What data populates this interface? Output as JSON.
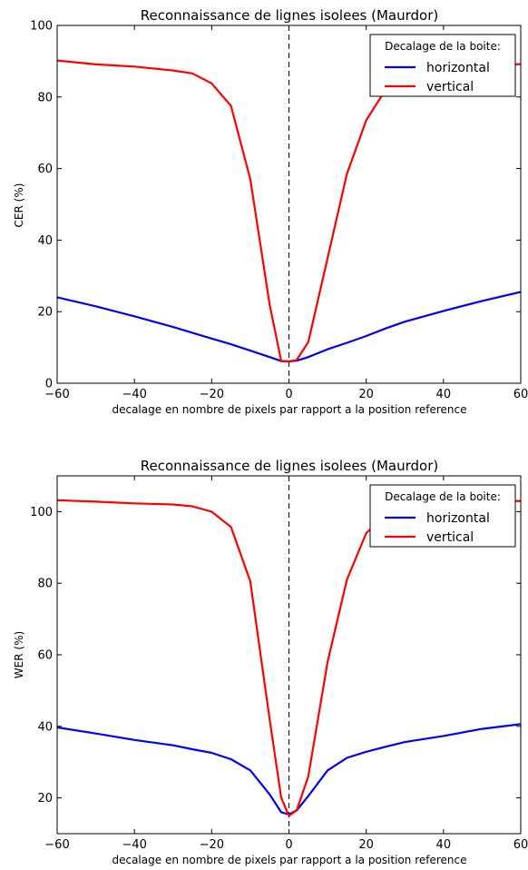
{
  "chart_data": [
    {
      "type": "line",
      "title": "Reconnaissance de lignes isolees (Maurdor)",
      "xlabel": "decalage en nombre de pixels par rapport a la position reference",
      "ylabel": "CER (%)",
      "xlim": [
        -60,
        60
      ],
      "ylim": [
        0,
        100
      ],
      "xticks": [
        -60,
        -40,
        -20,
        0,
        20,
        40,
        60
      ],
      "yticks": [
        0,
        20,
        40,
        60,
        80,
        100
      ],
      "grid": false,
      "reference_line_x": 0,
      "legend": {
        "title": "Decalage de la boite:",
        "position": "top-right"
      },
      "series": [
        {
          "name": "horizontal",
          "color": "#0000ff",
          "x": [
            -60,
            -50,
            -40,
            -30,
            -25,
            -20,
            -15,
            -10,
            -5,
            -2,
            0,
            2,
            5,
            10,
            15,
            20,
            25,
            30,
            40,
            50,
            60
          ],
          "y": [
            24,
            21.5,
            18.7,
            15.7,
            14.1,
            12.5,
            10.9,
            9.1,
            7.3,
            6.2,
            6.1,
            6.3,
            7.3,
            9.5,
            11.3,
            13.2,
            15.3,
            17.2,
            20.2,
            23.0,
            25.5
          ]
        },
        {
          "name": "vertical",
          "color": "#ff0000",
          "x": [
            -60,
            -50,
            -40,
            -30,
            -25,
            -20,
            -15,
            -10,
            -5,
            -2,
            0,
            2,
            5,
            10,
            15,
            20,
            25,
            30,
            40,
            50,
            60
          ],
          "y": [
            90.2,
            89.1,
            88.5,
            87.4,
            86.6,
            83.8,
            77.5,
            57.0,
            22.0,
            6.2,
            6.1,
            6.5,
            11.5,
            35.0,
            58.5,
            73.5,
            82.0,
            86.0,
            88.0,
            88.8,
            89.2
          ]
        }
      ]
    },
    {
      "type": "line",
      "title": "Reconnaissance de lignes isolees (Maurdor)",
      "xlabel": "decalage en nombre de pixels par rapport a la position reference",
      "ylabel": "WER (%)",
      "xlim": [
        -60,
        60
      ],
      "ylim": [
        10,
        110
      ],
      "xticks": [
        -60,
        -40,
        -20,
        0,
        20,
        40,
        60
      ],
      "yticks": [
        20,
        40,
        60,
        80,
        100
      ],
      "grid": false,
      "reference_line_x": 0,
      "legend": {
        "title": "Decalage de la boite:",
        "position": "top-right"
      },
      "series": [
        {
          "name": "horizontal",
          "color": "#0000ff",
          "x": [
            -60,
            -50,
            -40,
            -30,
            -25,
            -20,
            -15,
            -10,
            -5,
            -2,
            0,
            2,
            5,
            10,
            15,
            20,
            25,
            30,
            40,
            50,
            60
          ],
          "y": [
            39.7,
            38.0,
            36.2,
            34.7,
            33.6,
            32.6,
            30.8,
            27.7,
            21.0,
            16.0,
            15.4,
            16.5,
            20.5,
            27.7,
            31.2,
            32.9,
            34.3,
            35.6,
            37.3,
            39.3,
            40.6
          ]
        },
        {
          "name": "vertical",
          "color": "#ff0000",
          "x": [
            -60,
            -50,
            -40,
            -30,
            -25,
            -20,
            -15,
            -10,
            -5,
            -2,
            0,
            2,
            5,
            10,
            15,
            20,
            25,
            30,
            40,
            50,
            60
          ],
          "y": [
            103.2,
            102.8,
            102.3,
            102.0,
            101.5,
            100.0,
            95.7,
            80.5,
            42.0,
            20.0,
            15.0,
            16.5,
            26.0,
            58.0,
            81.0,
            94.0,
            99.0,
            101.5,
            102.5,
            102.8,
            103.0
          ]
        }
      ]
    }
  ]
}
